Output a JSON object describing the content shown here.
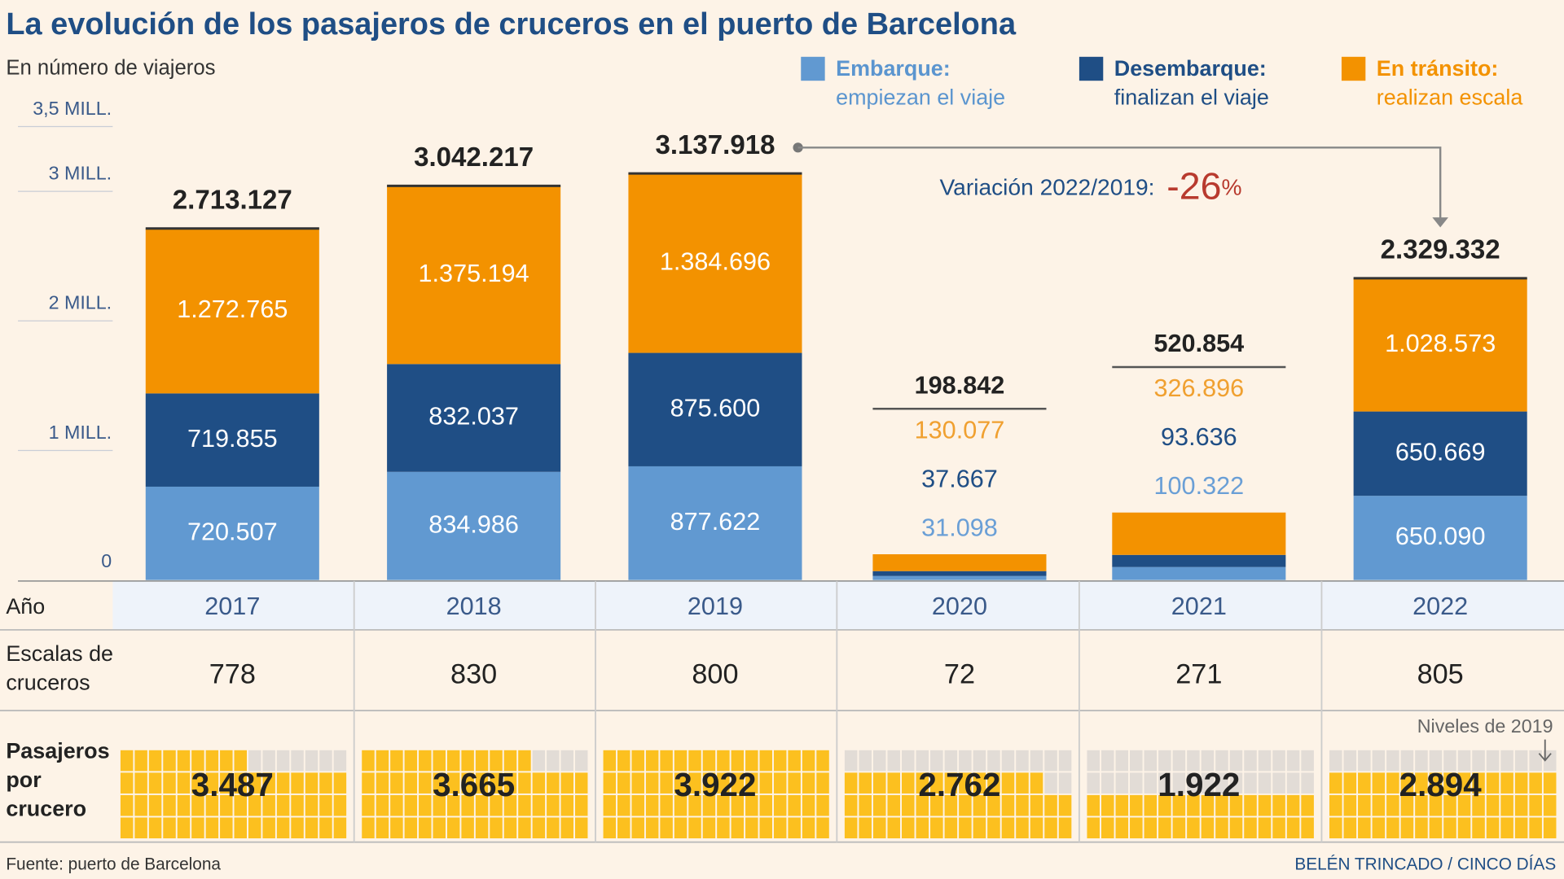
{
  "chart_data": {
    "type": "bar",
    "stacked": true,
    "title": "La evolución de los pasajeros de cruceros en el puerto de Barcelona",
    "subtitle": "En número de viajeros",
    "categories": [
      "2017",
      "2018",
      "2019",
      "2020",
      "2021",
      "2022"
    ],
    "series": [
      {
        "name": "Embarque:",
        "description": "empiezan el viaje",
        "color": "#6199d1",
        "values": [
          720507,
          834986,
          877622,
          31098,
          100322,
          650090
        ],
        "value_labels": [
          "720.507",
          "834.986",
          "877.622",
          "31.098",
          "100.322",
          "650.090"
        ]
      },
      {
        "name": "Desembarque:",
        "description": "finalizan el viaje",
        "color": "#1f4e85",
        "values": [
          719855,
          832037,
          875600,
          37667,
          93636,
          650669
        ],
        "value_labels": [
          "719.855",
          "832.037",
          "875.600",
          "37.667",
          "93.636",
          "650.669"
        ]
      },
      {
        "name": "En tránsito:",
        "description": "realizan escala",
        "color": "#f39200",
        "values": [
          1272765,
          1375194,
          1384696,
          130077,
          326896,
          1028573
        ],
        "value_labels": [
          "1.272.765",
          "1.375.194",
          "1.384.696",
          "130.077",
          "326.896",
          "1.028.573"
        ]
      }
    ],
    "totals": {
      "values": [
        2713127,
        3042217,
        3137918,
        198842,
        520854,
        2329332
      ],
      "value_labels": [
        "2.713.127",
        "3.042.217",
        "3.137.918",
        "198.842",
        "520.854",
        "2.329.332"
      ]
    },
    "ylim": [
      0,
      3500000
    ],
    "yticks": [
      0,
      {
        "value": 1000000,
        "label": "1 MILL."
      },
      {
        "value": 2000000,
        "label": "2 MILL."
      },
      {
        "value": 3000000,
        "label": "3 MILL."
      },
      {
        "value": 3500000,
        "label": "3,5 MILL."
      }
    ],
    "annotation": {
      "text": "Variación 2022/2019:",
      "value": "-26",
      "unit": "%"
    }
  },
  "table": {
    "year_label": [
      "Año"
    ],
    "escalas_label": [
      "Escalas de",
      "cruceros"
    ],
    "escalas": [
      778,
      830,
      800,
      72,
      271,
      805
    ],
    "pasajeros_label": [
      "Pasajeros",
      "por",
      "crucero"
    ],
    "pasajeros": {
      "values": [
        3487,
        3665,
        3922,
        2762,
        1922,
        2894
      ],
      "value_labels": [
        "3.487",
        "3.665",
        "3.922",
        "2.762",
        "1.922",
        "2.894"
      ]
    },
    "note": "Niveles de 2019"
  },
  "footer": {
    "source": "Fuente: puerto de Barcelona",
    "credit": "BELÉN TRINCADO / CINCO DÍAS"
  }
}
